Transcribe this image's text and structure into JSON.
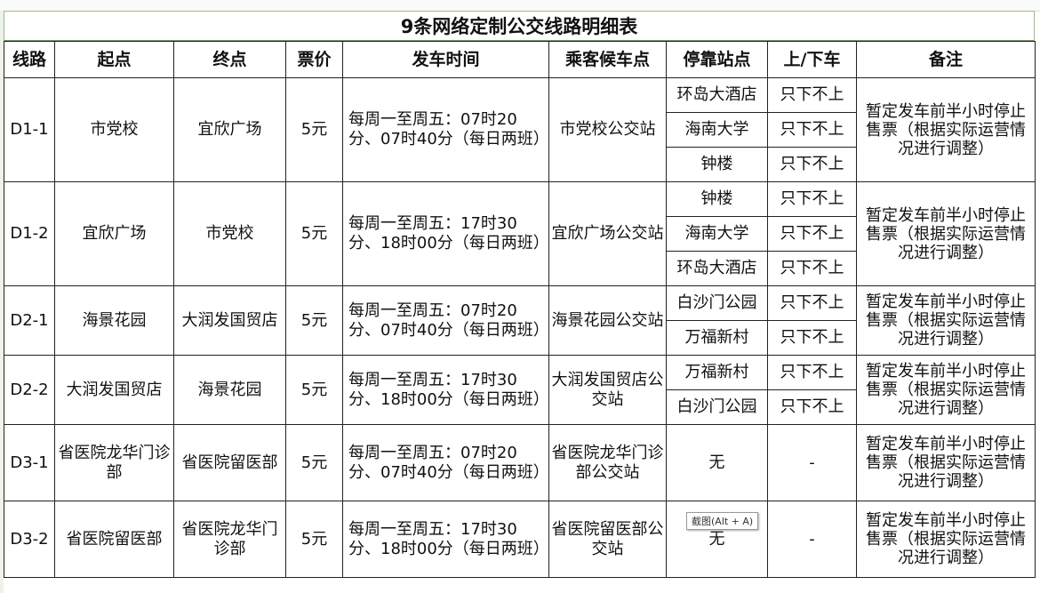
{
  "title": "9条网络定制公交线路明细表",
  "headers": [
    "线路",
    "起点",
    "终点",
    "票价",
    "发车时间",
    "乘客候车点",
    "停靠站点",
    "上/下车",
    "备注"
  ],
  "routes": [
    {
      "line": "D1-1",
      "start": "市党校",
      "end": "宜欣广场",
      "price": "5元",
      "time": "每周一至周五：07时20分、07时40分（每日两班）",
      "wait": "市党校公交站",
      "stops": [
        {
          "name": "环岛大酒店",
          "rule": "只下不上"
        },
        {
          "name": "海南大学",
          "rule": "只下不上"
        },
        {
          "name": "钟楼",
          "rule": "只下不上"
        }
      ],
      "note": "暂定发车前半小时停止售票（根据实际运营情况进行调整）"
    },
    {
      "line": "D1-2",
      "start": "宜欣广场",
      "end": "市党校",
      "price": "5元",
      "time": "每周一至周五：17时30分、18时00分（每日两班）",
      "wait": "宜欣广场公交站",
      "stops": [
        {
          "name": "钟楼",
          "rule": "只下不上"
        },
        {
          "name": "海南大学",
          "rule": "只下不上"
        },
        {
          "name": "环岛大酒店",
          "rule": "只下不上"
        }
      ],
      "note": "暂定发车前半小时停止售票（根据实际运营情况进行调整）"
    },
    {
      "line": "D2-1",
      "start": "海景花园",
      "end": "大润发国贸店",
      "price": "5元",
      "time": "每周一至周五：07时20分、07时40分（每日两班）",
      "wait": "海景花园公交站",
      "stops": [
        {
          "name": "白沙门公园",
          "rule": "只下不上"
        },
        {
          "name": "万福新村",
          "rule": "只下不上"
        }
      ],
      "note": "暂定发车前半小时停止售票（根据实际运营情况进行调整）"
    },
    {
      "line": "D2-2",
      "start": "大润发国贸店",
      "end": "海景花园",
      "price": "5元",
      "time": "每周一至周五：17时30分、18时00分（每日两班）",
      "wait": "大润发国贸店公交站",
      "stops": [
        {
          "name": "万福新村",
          "rule": "只下不上"
        },
        {
          "name": "白沙门公园",
          "rule": "只下不上"
        }
      ],
      "note": "暂定发车前半小时停止售票（根据实际运营情况进行调整）"
    },
    {
      "line": "D3-1",
      "start": "省医院龙华门诊部",
      "end": "省医院留医部",
      "price": "5元",
      "time": "每周一至周五：07时20分、07时40分（每日两班）",
      "wait": "省医院龙华门诊部公交站",
      "stops": [
        {
          "name": "无",
          "rule": "-"
        }
      ],
      "note": "暂定发车前半小时停止售票（根据实际运营情况进行调整）"
    },
    {
      "line": "D3-2",
      "start": "省医院留医部",
      "end": "省医院龙华门诊部",
      "price": "5元",
      "time": "每周一至周五：17时30分、18时00分（每日两班）",
      "wait": "省医院留医部公交站",
      "stops": [
        {
          "name": "无",
          "rule": "-"
        }
      ],
      "note": "暂定发车前半小时停止售票（根据实际运营情况进行调整）"
    }
  ],
  "tooltip": "截图(Alt + A)"
}
